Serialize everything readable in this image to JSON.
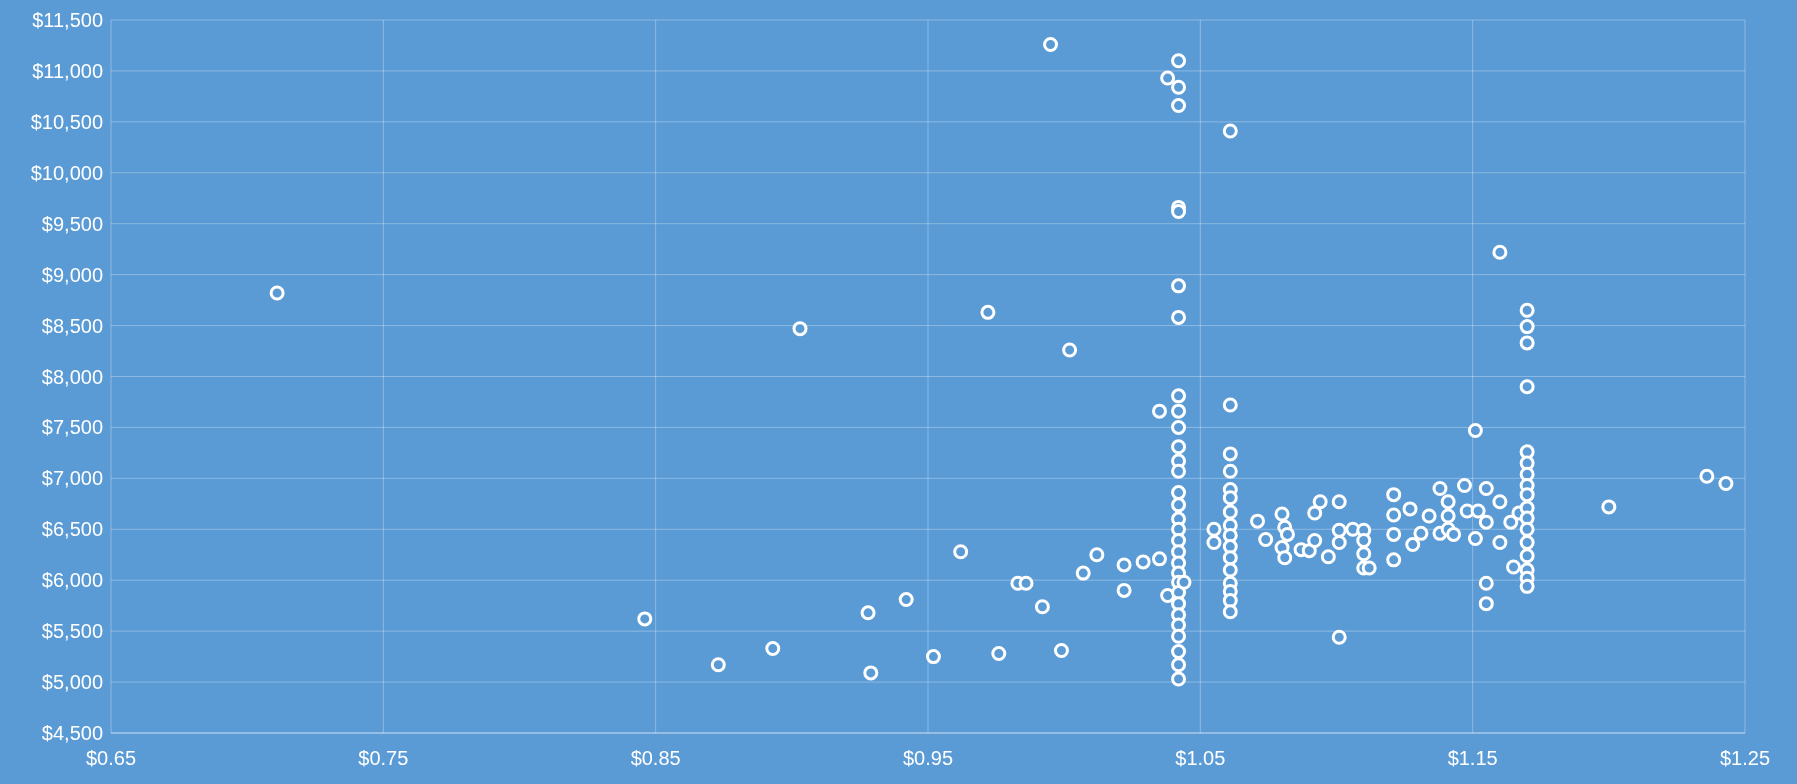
{
  "chart_data": {
    "type": "scatter",
    "marker": "circle",
    "grid": true,
    "xlim": [
      0.65,
      1.25
    ],
    "ylim": [
      4500,
      11500
    ],
    "xticks": [
      {
        "value": 0.65,
        "label": "$0.65"
      },
      {
        "value": 0.75,
        "label": "$0.75"
      },
      {
        "value": 0.85,
        "label": "$0.85"
      },
      {
        "value": 0.95,
        "label": "$0.95"
      },
      {
        "value": 1.05,
        "label": "$1.05"
      },
      {
        "value": 1.15,
        "label": "$1.15"
      },
      {
        "value": 1.25,
        "label": "$1.25"
      }
    ],
    "yticks": [
      {
        "value": 4500,
        "label": "$4,500"
      },
      {
        "value": 5000,
        "label": "$5,000"
      },
      {
        "value": 5500,
        "label": "$5,500"
      },
      {
        "value": 6000,
        "label": "$6,000"
      },
      {
        "value": 6500,
        "label": "$6,500"
      },
      {
        "value": 7000,
        "label": "$7,000"
      },
      {
        "value": 7500,
        "label": "$7,500"
      },
      {
        "value": 8000,
        "label": "$8,000"
      },
      {
        "value": 8500,
        "label": "$8,500"
      },
      {
        "value": 9000,
        "label": "$9,000"
      },
      {
        "value": 9500,
        "label": "$9,500"
      },
      {
        "value": 10000,
        "label": "$10,000"
      },
      {
        "value": 10500,
        "label": "$10,500"
      },
      {
        "value": 11000,
        "label": "$11,000"
      },
      {
        "value": 11500,
        "label": "$11,500"
      }
    ],
    "series": [
      {
        "color": "#ffffff",
        "x": [
          0.711,
          0.846,
          0.873,
          0.893,
          0.903,
          0.928,
          0.929,
          0.942,
          0.952,
          0.962,
          0.972,
          0.976,
          0.983,
          0.986,
          0.992,
          0.995,
          0.999,
          1.002,
          1.007,
          1.012,
          1.022,
          1.022,
          1.029,
          1.035,
          1.035,
          1.038,
          1.038,
          1.042,
          1.042,
          1.042,
          1.042,
          1.042,
          1.042,
          1.042,
          1.042,
          1.042,
          1.042,
          1.042,
          1.042,
          1.042,
          1.042,
          1.042,
          1.042,
          1.042,
          1.042,
          1.042,
          1.042,
          1.042,
          1.042,
          1.042,
          1.042,
          1.042,
          1.042,
          1.042,
          1.042,
          1.042,
          1.042,
          1.044,
          1.061,
          1.061,
          1.061,
          1.061,
          1.061,
          1.061,
          1.061,
          1.061,
          1.061,
          1.061,
          1.061,
          1.061,
          1.061,
          1.061,
          1.061,
          1.061,
          1.055,
          1.055,
          1.071,
          1.074,
          1.08,
          1.081,
          1.08,
          1.081,
          1.082,
          1.087,
          1.09,
          1.092,
          1.092,
          1.094,
          1.097,
          1.101,
          1.101,
          1.101,
          1.101,
          1.106,
          1.11,
          1.11,
          1.11,
          1.11,
          1.112,
          1.121,
          1.121,
          1.121,
          1.121,
          1.127,
          1.128,
          1.131,
          1.134,
          1.138,
          1.138,
          1.141,
          1.141,
          1.141,
          1.143,
          1.147,
          1.148,
          1.151,
          1.151,
          1.152,
          1.155,
          1.155,
          1.155,
          1.155,
          1.16,
          1.16,
          1.16,
          1.164,
          1.165,
          1.167,
          1.17,
          1.17,
          1.17,
          1.17,
          1.17,
          1.17,
          1.17,
          1.17,
          1.17,
          1.17,
          1.17,
          1.17,
          1.17,
          1.17,
          1.17,
          1.17,
          1.17,
          1.2,
          1.236,
          1.243
        ],
        "values": [
          8820,
          5620,
          5170,
          5330,
          8470,
          5680,
          5090,
          5810,
          5250,
          6280,
          8630,
          5280,
          5970,
          5970,
          5740,
          11260,
          5310,
          8260,
          6070,
          6250,
          6150,
          5900,
          6180,
          6210,
          7660,
          10930,
          5850,
          11100,
          10840,
          10660,
          9660,
          9620,
          8890,
          8580,
          7810,
          7660,
          7500,
          7310,
          7170,
          7070,
          6860,
          6740,
          6600,
          6500,
          6390,
          6280,
          6170,
          6070,
          5980,
          5880,
          5770,
          5660,
          5560,
          5450,
          5300,
          5170,
          5030,
          5980,
          10410,
          7720,
          7240,
          7070,
          6890,
          6810,
          6670,
          6540,
          6440,
          6330,
          6220,
          6100,
          5970,
          5890,
          5800,
          5690,
          6500,
          6370,
          6580,
          6400,
          6650,
          6520,
          6320,
          6220,
          6450,
          6300,
          6290,
          6660,
          6390,
          6770,
          6230,
          6770,
          6490,
          6370,
          5440,
          6500,
          6490,
          6390,
          6260,
          6120,
          6120,
          6840,
          6640,
          6450,
          6200,
          6700,
          6350,
          6460,
          6630,
          6900,
          6460,
          6770,
          6630,
          6500,
          6450,
          6930,
          6680,
          6410,
          7470,
          6680,
          6900,
          6570,
          5970,
          5770,
          9220,
          6770,
          6370,
          6570,
          6130,
          6660,
          8650,
          8490,
          8330,
          7900,
          7260,
          7150,
          7040,
          6930,
          6840,
          6710,
          6610,
          6500,
          6370,
          6240,
          6100,
          6020,
          5940,
          6720,
          7020,
          6950
        ]
      }
    ]
  }
}
